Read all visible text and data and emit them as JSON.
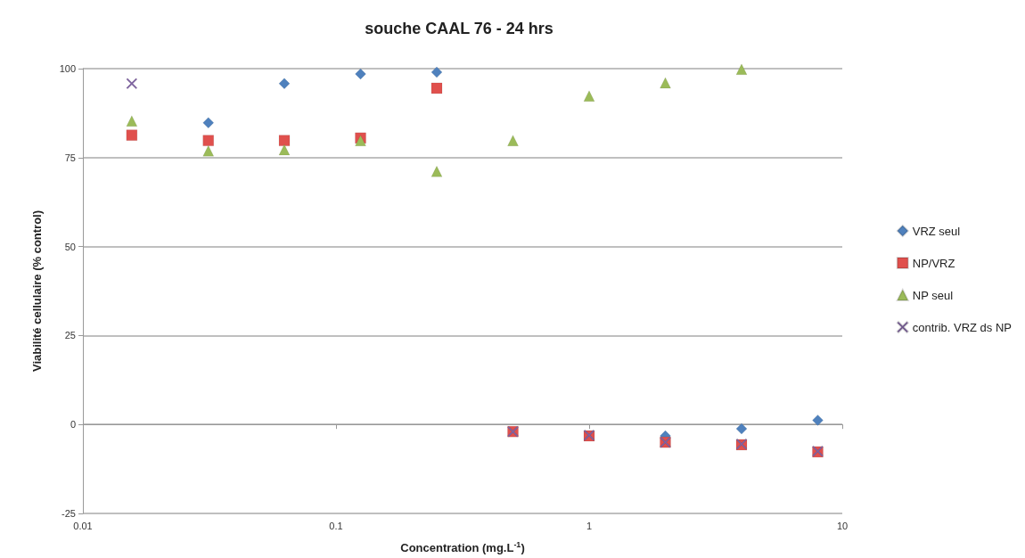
{
  "chart_data": {
    "type": "scatter",
    "title": "souche CAAL 76 - 24 hrs",
    "xlabel": "Concentration (mg.L$^{-1}$)",
    "ylabel": "Viabilité cellulaire (% control)",
    "x": [
      0.0156,
      0.0313,
      0.0625,
      0.125,
      0.25,
      0.5,
      1,
      2,
      4,
      8
    ],
    "series": [
      {
        "name": "VRZ seul",
        "color": "#4f81bd",
        "marker": "diamond",
        "values": [
          null,
          84.8,
          95.8,
          98.5,
          99,
          null,
          null,
          -3.2,
          -1.2,
          1.2
        ]
      },
      {
        "name": "NP/VRZ",
        "color": "#e0504d",
        "marker": "square",
        "values": [
          81.3,
          79.8,
          79.8,
          80.5,
          94.5,
          -2,
          -3.2,
          -5,
          -5.7,
          -7.7
        ]
      },
      {
        "name": "NP seul",
        "color": "#9bbb59",
        "marker": "triangle",
        "values": [
          85.3,
          76.9,
          77.2,
          79.8,
          71.1,
          79.8,
          92.3,
          96,
          99.8,
          null
        ]
      },
      {
        "name": "contrib. VRZ ds NP",
        "color": "#8064a2",
        "marker": "cross",
        "values": [
          95.8,
          null,
          null,
          null,
          null,
          -2,
          -3,
          -5,
          -5.5,
          -7.5
        ]
      }
    ],
    "log": "x",
    "xlim": [
      0.01,
      10
    ],
    "xticks": [
      0.01,
      0.1,
      1,
      10
    ],
    "ylim": [
      -25,
      100
    ],
    "yticks": [
      -25,
      0,
      25,
      50,
      75,
      100
    ],
    "grid": "y",
    "legend": "right"
  }
}
